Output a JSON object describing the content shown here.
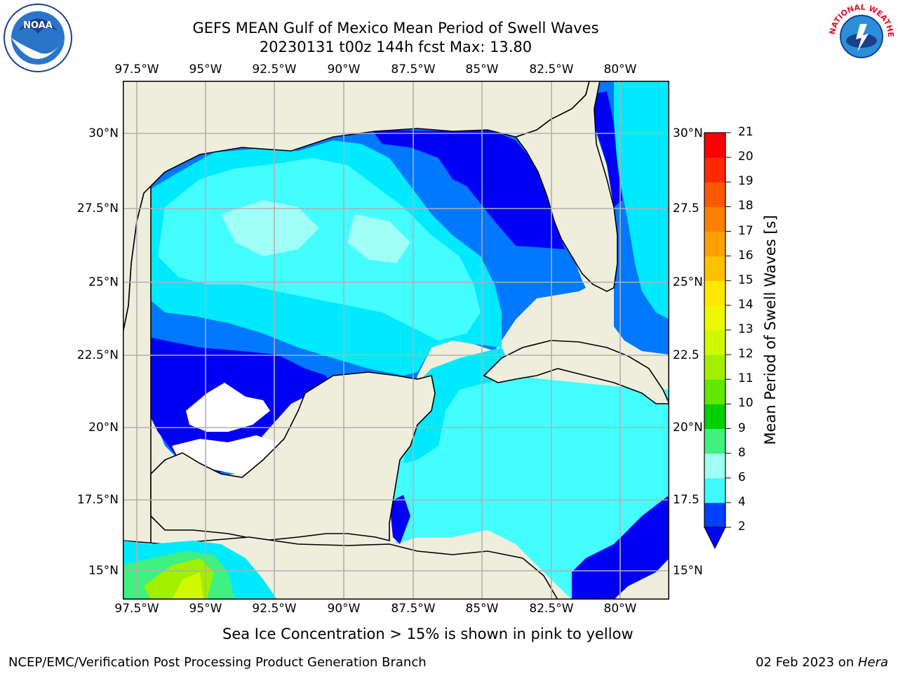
{
  "title_line1": "GEFS MEAN Gulf of Mexico Mean Period of Swell Waves",
  "title_line2": "20230131 t00z 144h fcst   Max: 13.80",
  "lon_ticks": [
    "97.5°W",
    "95°W",
    "92.5°W",
    "90°W",
    "87.5°W",
    "85°W",
    "82.5°W",
    "80°W"
  ],
  "lat_ticks_left": [
    "30°N",
    "27.5°N",
    "25°N",
    "22.5°N",
    "20°N",
    "17.5°N",
    "15°N"
  ],
  "lat_ticks_right": [
    "30°N",
    "27.5",
    "25°N",
    "22.5",
    "20°N",
    "17.5",
    "15°N"
  ],
  "colorbar": {
    "label": "Mean Period of Swell Waves [s]",
    "ticks": [
      "2",
      "4",
      "6",
      "8",
      "9",
      "10",
      "11",
      "12",
      "13",
      "14",
      "15",
      "16",
      "17",
      "18",
      "19",
      "20",
      "21"
    ],
    "colors": [
      "#0040ff",
      "#00e8ff",
      "#40f8ff",
      "#a0fff4",
      "#40f080",
      "#00d000",
      "#60e800",
      "#a0f000",
      "#d0f800",
      "#f0f800",
      "#ffe800",
      "#ffc000",
      "#ffa000",
      "#ff8000",
      "#ff5800",
      "#ff2800",
      "#ff0000"
    ],
    "extend_color": "#0000ff"
  },
  "subtitle": "Sea Ice Concentration > 15% is shown in pink to yellow",
  "footer_left": "NCEP/EMC/Verification Post Processing Product Generation Branch",
  "footer_right_date": "02 Feb 2023 on ",
  "footer_right_host": "Hera",
  "logos": {
    "left": "NOAA",
    "right": "NATIONAL WEATHER SERVICE"
  },
  "colors": {
    "land": "#efeedd",
    "deep_blue": "#0000f4",
    "mid_blue": "#0078ff",
    "cyan": "#00eaff",
    "light_cyan": "#44fdff",
    "pale_cyan": "#a0fff6",
    "grid": "#b0b0b0"
  }
}
